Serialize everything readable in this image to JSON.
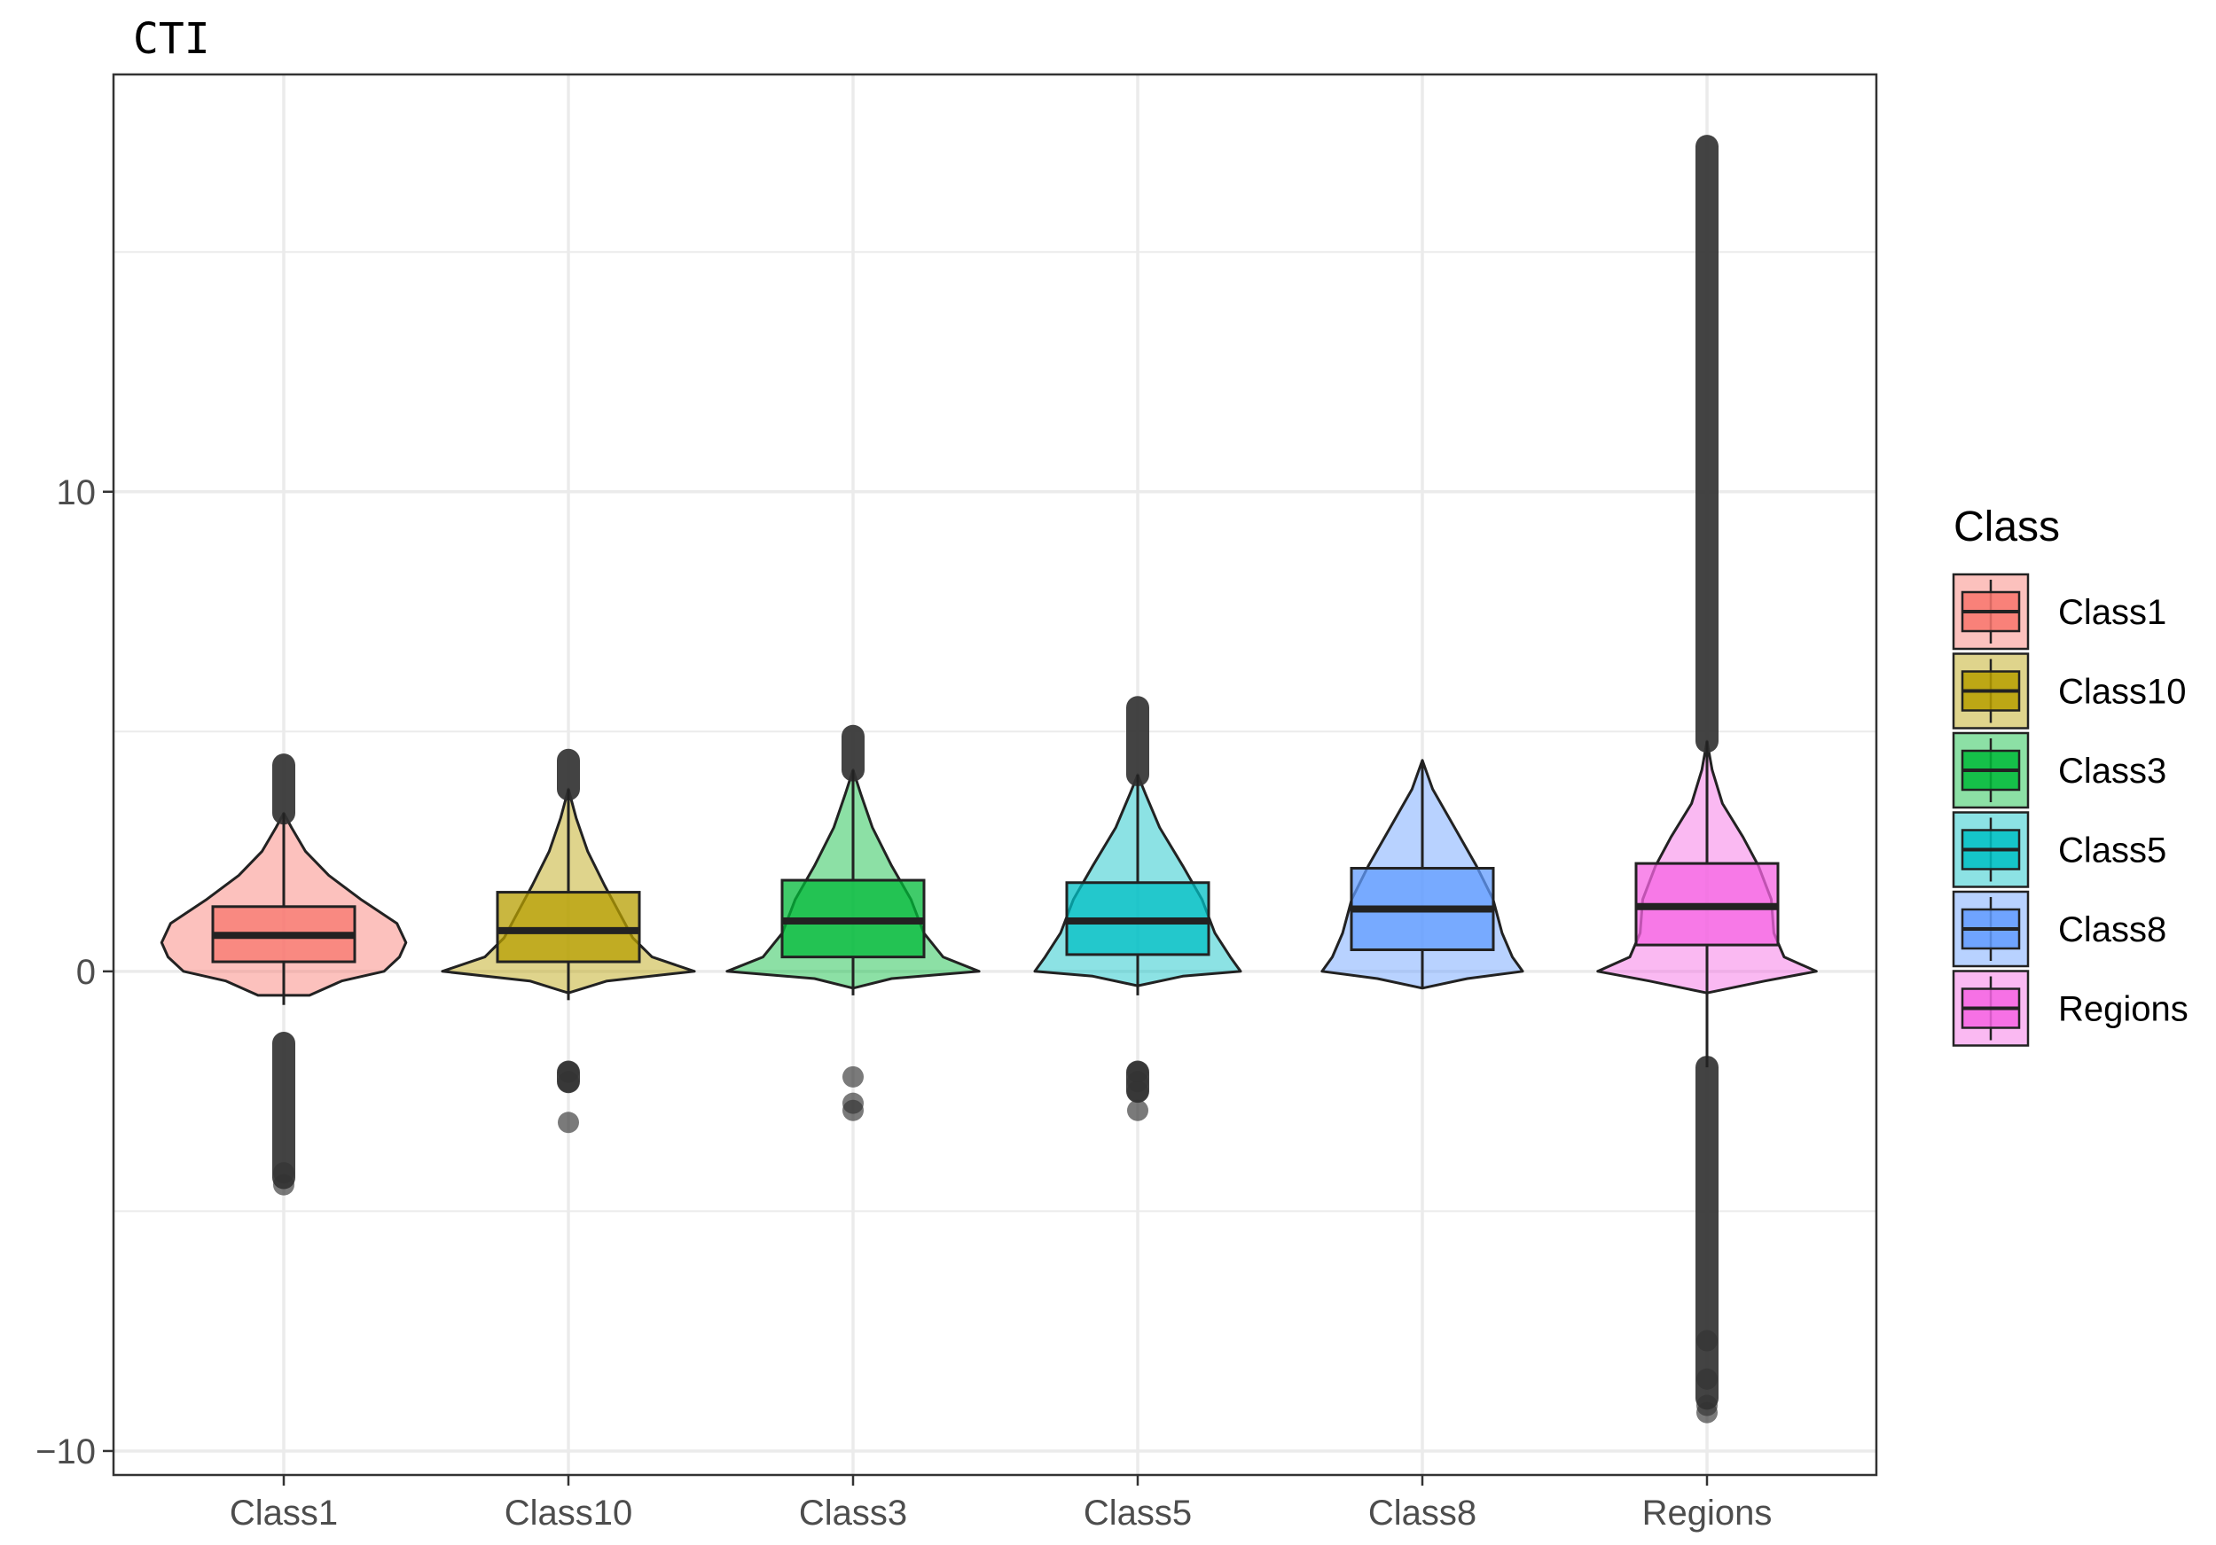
{
  "chart_data": {
    "type": "violin",
    "title": "CTI",
    "xlabel": "",
    "ylabel": "",
    "ylim": [
      -10.5,
      18.7
    ],
    "y_ticks": [
      -10,
      0,
      10
    ],
    "y_tick_labels": [
      "−10",
      "0",
      "10"
    ],
    "grid": true,
    "legend_title": "Class",
    "legend_position": "right",
    "categories": [
      "Class1",
      "Class10",
      "Class3",
      "Class5",
      "Class8",
      "Regions"
    ],
    "series": [
      {
        "name": "Class1",
        "color": "#F8766D",
        "box": {
          "q1": 0.2,
          "median": 0.75,
          "q3": 1.35,
          "whisker_low": -0.7,
          "whisker_high": 3.3
        },
        "range": [
          -0.5,
          3.3
        ],
        "density": [
          [
            -0.5,
            0.2
          ],
          [
            -0.2,
            0.45
          ],
          [
            0.0,
            0.78
          ],
          [
            0.3,
            0.9
          ],
          [
            0.6,
            0.95
          ],
          [
            1.0,
            0.88
          ],
          [
            1.5,
            0.6
          ],
          [
            2.0,
            0.35
          ],
          [
            2.5,
            0.17
          ],
          [
            3.0,
            0.06
          ],
          [
            3.3,
            0.0
          ]
        ],
        "outliers_high": [
          3.3,
          4.3
        ],
        "outliers_low": [
          -1.5,
          -4.3
        ],
        "outlier_points": [
          -4.45,
          -4.2
        ]
      },
      {
        "name": "Class10",
        "color": "#B79F00",
        "box": {
          "q1": 0.2,
          "median": 0.85,
          "q3": 1.65,
          "whisker_low": -0.6,
          "whisker_high": 3.8
        },
        "range": [
          -0.45,
          3.8
        ],
        "density": [
          [
            -0.45,
            0.0
          ],
          [
            -0.2,
            0.3
          ],
          [
            0.0,
            0.98
          ],
          [
            0.3,
            0.65
          ],
          [
            0.7,
            0.5
          ],
          [
            1.2,
            0.4
          ],
          [
            1.8,
            0.28
          ],
          [
            2.5,
            0.15
          ],
          [
            3.2,
            0.06
          ],
          [
            3.8,
            0.0
          ]
        ],
        "outliers_high": [
          3.8,
          4.4
        ],
        "outliers_low": [
          -2.1,
          -2.3
        ],
        "outlier_points": [
          -2.1,
          -2.3,
          -3.15
        ]
      },
      {
        "name": "Class3",
        "color": "#00BA38",
        "box": {
          "q1": 0.3,
          "median": 1.05,
          "q3": 1.9,
          "whisker_low": -0.5,
          "whisker_high": 4.2
        },
        "range": [
          -0.35,
          4.2
        ],
        "density": [
          [
            -0.35,
            0.0
          ],
          [
            -0.15,
            0.3
          ],
          [
            0.0,
            0.98
          ],
          [
            0.3,
            0.7
          ],
          [
            0.8,
            0.55
          ],
          [
            1.5,
            0.45
          ],
          [
            2.2,
            0.3
          ],
          [
            3.0,
            0.15
          ],
          [
            3.7,
            0.06
          ],
          [
            4.2,
            0.0
          ]
        ],
        "outliers_high": [
          4.2,
          4.9
        ],
        "outliers_low": [],
        "outlier_points": [
          -2.2,
          -2.75,
          -2.9
        ]
      },
      {
        "name": "Class5",
        "color": "#00BFC4",
        "box": {
          "q1": 0.35,
          "median": 1.05,
          "q3": 1.85,
          "whisker_low": -0.5,
          "whisker_high": 4.1
        },
        "range": [
          -0.3,
          4.1
        ],
        "density": [
          [
            -0.3,
            0.0
          ],
          [
            -0.1,
            0.35
          ],
          [
            0.0,
            0.8
          ],
          [
            0.3,
            0.72
          ],
          [
            0.8,
            0.6
          ],
          [
            1.5,
            0.5
          ],
          [
            2.2,
            0.35
          ],
          [
            3.0,
            0.17
          ],
          [
            3.7,
            0.06
          ],
          [
            4.1,
            0.0
          ]
        ],
        "outliers_high": [
          4.1,
          5.5
        ],
        "outliers_low": [
          -2.1,
          -2.5
        ],
        "outlier_points": [
          -2.1,
          -2.3,
          -2.5,
          -2.9
        ]
      },
      {
        "name": "Class8",
        "color": "#619CFF",
        "box": {
          "q1": 0.45,
          "median": 1.3,
          "q3": 2.15,
          "whisker_low": -0.35,
          "whisker_high": 4.4
        },
        "range": [
          -0.35,
          4.4
        ],
        "density": [
          [
            -0.35,
            0.0
          ],
          [
            -0.15,
            0.35
          ],
          [
            0.0,
            0.78
          ],
          [
            0.3,
            0.7
          ],
          [
            0.8,
            0.62
          ],
          [
            1.5,
            0.55
          ],
          [
            2.2,
            0.42
          ],
          [
            3.0,
            0.25
          ],
          [
            3.8,
            0.08
          ],
          [
            4.4,
            0.0
          ]
        ],
        "outliers_high": [],
        "outliers_low": [],
        "outlier_points": []
      },
      {
        "name": "Regions",
        "color": "#F564E3",
        "box": {
          "q1": 0.55,
          "median": 1.35,
          "q3": 2.25,
          "whisker_low": -2.0,
          "whisker_high": 4.8
        },
        "range": [
          -0.45,
          4.8
        ],
        "density": [
          [
            -0.45,
            0.0
          ],
          [
            -0.2,
            0.45
          ],
          [
            0.0,
            0.85
          ],
          [
            0.3,
            0.6
          ],
          [
            0.8,
            0.52
          ],
          [
            1.5,
            0.5
          ],
          [
            2.2,
            0.4
          ],
          [
            2.8,
            0.28
          ],
          [
            3.5,
            0.12
          ],
          [
            4.2,
            0.04
          ],
          [
            4.8,
            0.0
          ]
        ],
        "outliers_high": [
          4.8,
          17.2
        ],
        "outliers_low": [
          -2.0,
          -8.9
        ],
        "outlier_points": [
          -7.7,
          -8.5,
          -9.05,
          -9.2
        ]
      }
    ]
  }
}
